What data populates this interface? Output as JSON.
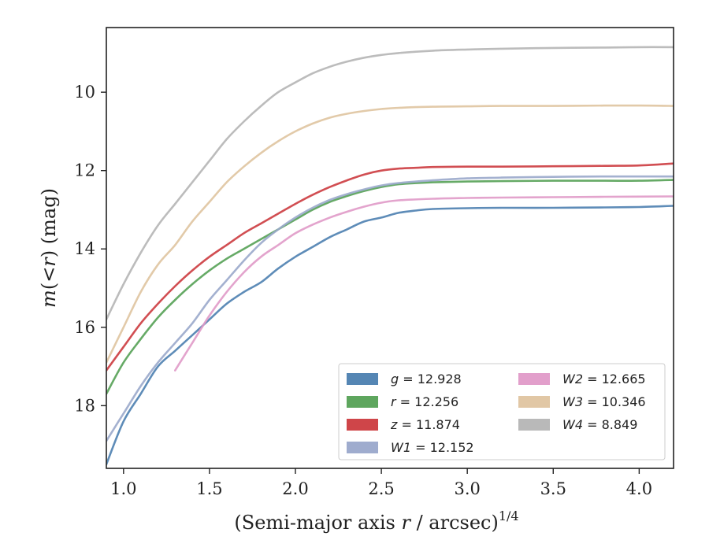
{
  "chart_data": {
    "type": "line",
    "title": "",
    "xlabel_main": "(Semi-major axis ",
    "xlabel_var": "r",
    "xlabel_rest": " / arcsec)",
    "xlabel_sup": "1/4",
    "ylabel_var": "m",
    "ylabel_paren_open": "(<",
    "ylabel_var2": "r",
    "ylabel_rest": ") (mag)",
    "xlim": [
      0.9,
      4.2
    ],
    "ylim": [
      19.6,
      8.35
    ],
    "y_inverted": true,
    "xticks": [
      1.0,
      1.5,
      2.0,
      2.5,
      3.0,
      3.5,
      4.0
    ],
    "xtick_labels": [
      "1.0",
      "1.5",
      "2.0",
      "2.5",
      "3.0",
      "3.5",
      "4.0"
    ],
    "yticks": [
      10,
      12,
      14,
      16,
      18
    ],
    "ytick_labels": [
      "10",
      "12",
      "14",
      "16",
      "18"
    ],
    "grid": false,
    "legend_position": "lower-right",
    "legend_columns": 2,
    "series": [
      {
        "name": "g",
        "legend_value": "= 12.928",
        "color": "#4c7fb0",
        "x": [
          0.9,
          1.0,
          1.1,
          1.2,
          1.3,
          1.4,
          1.5,
          1.6,
          1.7,
          1.8,
          1.9,
          2.0,
          2.1,
          2.2,
          2.3,
          2.4,
          2.5,
          2.6,
          2.7,
          2.8,
          3.0,
          3.2,
          3.5,
          3.8,
          4.0,
          4.2
        ],
        "y": [
          19.5,
          18.4,
          17.7,
          17.0,
          16.6,
          16.2,
          15.8,
          15.4,
          15.1,
          14.85,
          14.5,
          14.2,
          13.95,
          13.7,
          13.5,
          13.3,
          13.2,
          13.08,
          13.02,
          12.98,
          12.96,
          12.95,
          12.95,
          12.94,
          12.93,
          12.9
        ]
      },
      {
        "name": "r",
        "legend_value": "= 12.256",
        "color": "#55a155",
        "x": [
          0.9,
          1.0,
          1.1,
          1.2,
          1.3,
          1.4,
          1.5,
          1.6,
          1.7,
          1.8,
          1.9,
          2.0,
          2.1,
          2.2,
          2.3,
          2.4,
          2.5,
          2.6,
          2.7,
          2.8,
          3.0,
          3.2,
          3.5,
          3.8,
          4.0,
          4.2
        ],
        "y": [
          17.7,
          16.9,
          16.3,
          15.75,
          15.3,
          14.9,
          14.55,
          14.25,
          14.0,
          13.75,
          13.5,
          13.25,
          13.0,
          12.8,
          12.65,
          12.52,
          12.42,
          12.35,
          12.32,
          12.3,
          12.28,
          12.27,
          12.26,
          12.26,
          12.26,
          12.24
        ]
      },
      {
        "name": "z",
        "legend_value": "= 11.874",
        "color": "#cc3b3f",
        "x": [
          0.9,
          1.0,
          1.1,
          1.2,
          1.3,
          1.4,
          1.5,
          1.6,
          1.7,
          1.8,
          1.9,
          2.0,
          2.1,
          2.2,
          2.3,
          2.4,
          2.5,
          2.6,
          2.7,
          2.8,
          3.0,
          3.2,
          3.5,
          3.8,
          4.0,
          4.2
        ],
        "y": [
          17.1,
          16.5,
          15.9,
          15.4,
          14.95,
          14.55,
          14.2,
          13.9,
          13.6,
          13.35,
          13.1,
          12.85,
          12.62,
          12.42,
          12.25,
          12.1,
          12.0,
          11.95,
          11.93,
          11.91,
          11.9,
          11.9,
          11.89,
          11.88,
          11.87,
          11.82
        ]
      },
      {
        "name": "W1",
        "legend_value": "= 12.152",
        "color": "#9aa8cb",
        "x": [
          0.9,
          1.0,
          1.1,
          1.2,
          1.3,
          1.4,
          1.5,
          1.6,
          1.7,
          1.8,
          1.9,
          2.0,
          2.1,
          2.2,
          2.3,
          2.4,
          2.5,
          2.6,
          2.8,
          3.0,
          3.2,
          3.5,
          3.8,
          4.2
        ],
        "y": [
          18.9,
          18.2,
          17.5,
          16.9,
          16.4,
          15.9,
          15.3,
          14.8,
          14.3,
          13.85,
          13.5,
          13.2,
          12.95,
          12.75,
          12.6,
          12.48,
          12.38,
          12.32,
          12.25,
          12.2,
          12.18,
          12.16,
          12.15,
          12.15
        ]
      },
      {
        "name": "W2",
        "legend_value": "= 12.665",
        "color": "#e09ac8",
        "x": [
          1.3,
          1.4,
          1.5,
          1.6,
          1.7,
          1.8,
          1.9,
          2.0,
          2.1,
          2.2,
          2.3,
          2.4,
          2.5,
          2.6,
          2.8,
          3.0,
          3.2,
          3.5,
          3.8,
          4.2
        ],
        "y": [
          17.1,
          16.4,
          15.7,
          15.1,
          14.6,
          14.2,
          13.9,
          13.6,
          13.38,
          13.2,
          13.05,
          12.92,
          12.82,
          12.76,
          12.72,
          12.7,
          12.69,
          12.68,
          12.67,
          12.66
        ]
      },
      {
        "name": "W3",
        "legend_value": "= 10.346",
        "color": "#dfc4a0",
        "x": [
          0.9,
          1.0,
          1.1,
          1.2,
          1.3,
          1.4,
          1.5,
          1.6,
          1.7,
          1.8,
          1.9,
          2.0,
          2.1,
          2.2,
          2.3,
          2.4,
          2.5,
          2.6,
          2.8,
          3.0,
          3.2,
          3.5,
          3.8,
          4.0,
          4.2
        ],
        "y": [
          16.9,
          16.0,
          15.1,
          14.4,
          13.9,
          13.3,
          12.8,
          12.3,
          11.9,
          11.55,
          11.25,
          11.0,
          10.8,
          10.65,
          10.55,
          10.48,
          10.43,
          10.4,
          10.37,
          10.36,
          10.35,
          10.35,
          10.34,
          10.34,
          10.35
        ]
      },
      {
        "name": "W4",
        "legend_value": "= 8.849",
        "color": "#b5b5b5",
        "x": [
          0.9,
          1.0,
          1.1,
          1.2,
          1.3,
          1.4,
          1.5,
          1.6,
          1.7,
          1.8,
          1.9,
          2.0,
          2.1,
          2.2,
          2.3,
          2.4,
          2.5,
          2.6,
          2.8,
          3.0,
          3.2,
          3.5,
          3.8,
          4.0,
          4.2
        ],
        "y": [
          15.8,
          14.9,
          14.1,
          13.4,
          12.85,
          12.3,
          11.75,
          11.2,
          10.75,
          10.35,
          10.0,
          9.75,
          9.52,
          9.35,
          9.22,
          9.12,
          9.05,
          9.0,
          8.94,
          8.91,
          8.89,
          8.87,
          8.86,
          8.85,
          8.85
        ]
      }
    ]
  }
}
